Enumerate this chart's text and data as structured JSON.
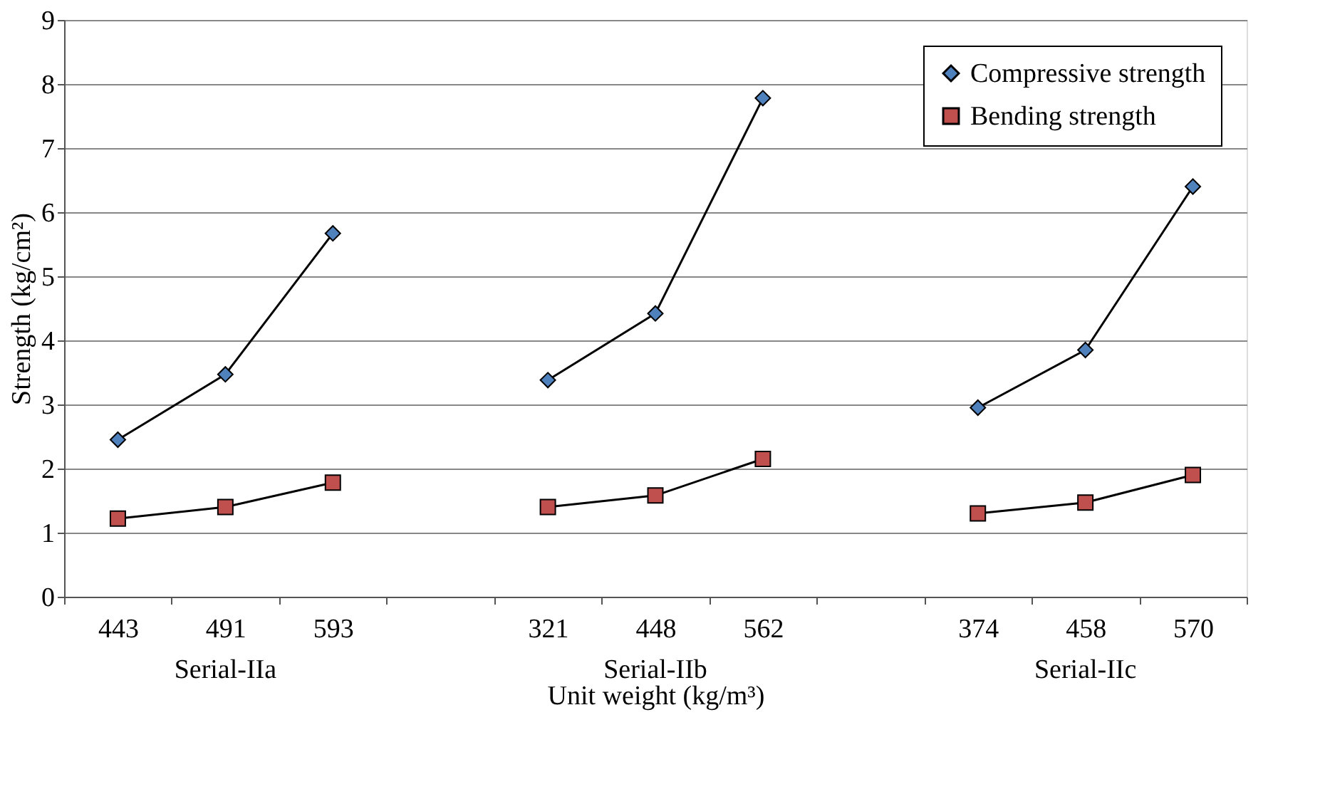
{
  "chart_data": {
    "type": "line",
    "categories": [
      "443",
      "491",
      "593",
      null,
      "321",
      "448",
      "562",
      null,
      "374",
      "458",
      "570"
    ],
    "series": [
      {
        "name": "Compressive strength",
        "color": "#4f81bd",
        "marker": "diamond",
        "values": [
          2.45,
          3.47,
          5.67,
          null,
          3.38,
          4.42,
          7.78,
          null,
          2.95,
          3.85,
          6.4
        ]
      },
      {
        "name": "Bending strength",
        "color": "#c0504d",
        "marker": "square",
        "values": [
          1.22,
          1.4,
          1.78,
          null,
          1.4,
          1.58,
          2.15,
          null,
          1.3,
          1.47,
          1.9
        ]
      }
    ],
    "xlabel": "Unit weight (kg/m³)",
    "ylabel": "Strength  (kg/cm²)",
    "annotations": [
      "Serial-IIa",
      "Serial-IIb",
      "Serial-IIc"
    ],
    "ylim": [
      0,
      9
    ],
    "yticks": [
      0,
      1,
      2,
      3,
      4,
      5,
      6,
      7,
      8,
      9
    ],
    "grid": "y",
    "legend": "top right",
    "line_style": "solid"
  }
}
